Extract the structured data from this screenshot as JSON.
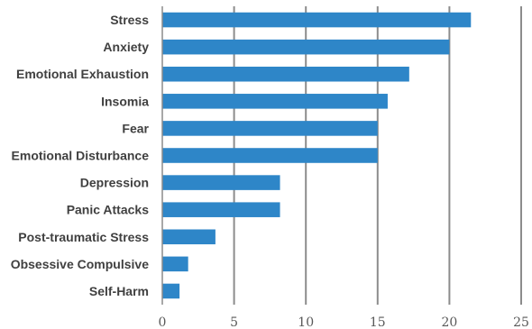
{
  "chart_data": {
    "type": "bar",
    "orientation": "horizontal",
    "categories": [
      "Stress",
      "Anxiety",
      "Emotional Exhaustion",
      "Insomia",
      "Fear",
      "Emotional Disturbance",
      "Depression",
      "Panic Attacks",
      "Post-traumatic Stress",
      "Obsessive Compulsive",
      "Self-Harm"
    ],
    "values": [
      21.5,
      20,
      17.2,
      15.7,
      15,
      15,
      8.2,
      8.2,
      3.7,
      1.8,
      1.2
    ],
    "xlim": [
      0,
      25
    ],
    "x_ticks": [
      0,
      5,
      10,
      15,
      20,
      25
    ],
    "grid": "vertical",
    "bar_color": "#2E86C8",
    "grid_color": "#8C8C8C",
    "title": "",
    "xlabel": "",
    "ylabel": ""
  }
}
